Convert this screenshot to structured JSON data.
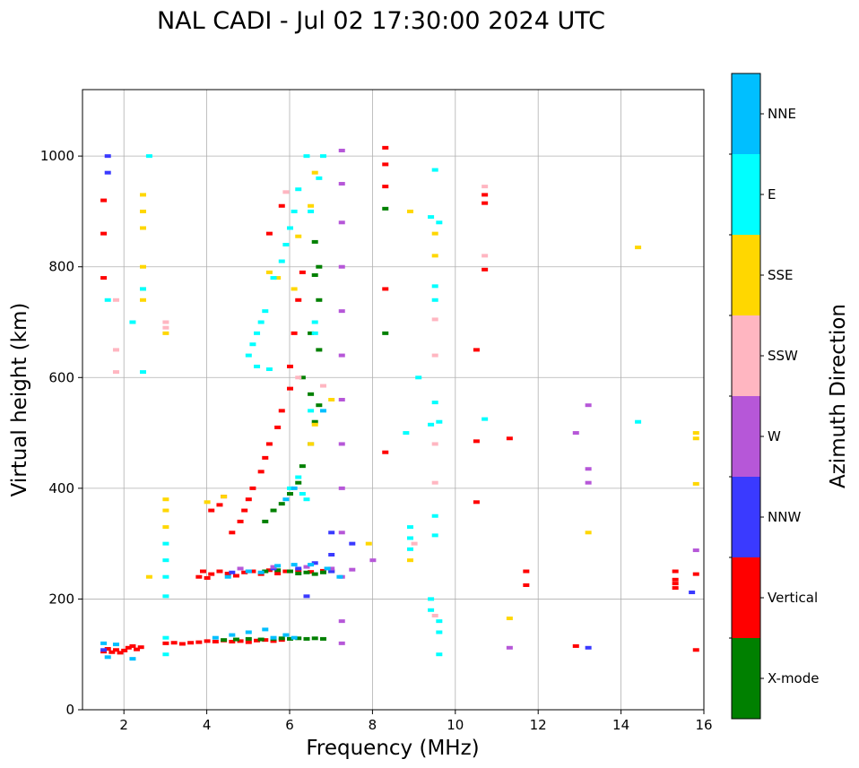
{
  "chart_data": {
    "type": "scatter",
    "title": "NAL CADI - Jul 02 17:30:00 2024 UTC",
    "xlabel": "Frequency (MHz)",
    "ylabel": "Virtual height (km)",
    "xlim": [
      1,
      16
    ],
    "ylim": [
      0,
      1120
    ],
    "xticks": [
      "2",
      "4",
      "6",
      "8",
      "10",
      "12",
      "14",
      "16"
    ],
    "yticks": [
      "0",
      "200",
      "400",
      "600",
      "800",
      "1000"
    ],
    "grid": true,
    "colorbar": {
      "label": "Azimuth Direction",
      "entries": [
        {
          "name": "X-mode",
          "color": "#008000"
        },
        {
          "name": "Vertical",
          "color": "#ff0000"
        },
        {
          "name": "NNW",
          "color": "#3a3aff"
        },
        {
          "name": "W",
          "color": "#b657d8"
        },
        {
          "name": "SSW",
          "color": "#ffb6c1"
        },
        {
          "name": "SSE",
          "color": "#ffd700"
        },
        {
          "name": "E",
          "color": "#00ffff"
        },
        {
          "name": "NNE",
          "color": "#00bfff"
        }
      ]
    },
    "series": [
      {
        "name": "Vertical",
        "points": [
          [
            1.5,
            105
          ],
          [
            1.6,
            110
          ],
          [
            1.7,
            104
          ],
          [
            1.8,
            108
          ],
          [
            1.9,
            103
          ],
          [
            2.0,
            107
          ],
          [
            2.1,
            112
          ],
          [
            2.2,
            115
          ],
          [
            2.3,
            109
          ],
          [
            2.4,
            113
          ],
          [
            3.0,
            120
          ],
          [
            3.2,
            121
          ],
          [
            3.4,
            119
          ],
          [
            3.6,
            121
          ],
          [
            3.8,
            122
          ],
          [
            4.0,
            124
          ],
          [
            4.2,
            123
          ],
          [
            4.4,
            125
          ],
          [
            4.6,
            123
          ],
          [
            4.8,
            124
          ],
          [
            5.0,
            122
          ],
          [
            5.2,
            125
          ],
          [
            5.4,
            126
          ],
          [
            5.6,
            124
          ],
          [
            5.8,
            126
          ],
          [
            3.8,
            240
          ],
          [
            3.9,
            250
          ],
          [
            4.0,
            238
          ],
          [
            4.1,
            245
          ],
          [
            4.3,
            250
          ],
          [
            4.5,
            246
          ],
          [
            4.7,
            242
          ],
          [
            4.9,
            248
          ],
          [
            5.1,
            250
          ],
          [
            5.3,
            245
          ],
          [
            5.5,
            252
          ],
          [
            5.7,
            246
          ],
          [
            5.9,
            250
          ],
          [
            6.2,
            252
          ],
          [
            6.5,
            249
          ],
          [
            6.8,
            251
          ],
          [
            4.1,
            360
          ],
          [
            4.3,
            370
          ],
          [
            4.4,
            385
          ],
          [
            4.6,
            320
          ],
          [
            4.8,
            340
          ],
          [
            4.9,
            360
          ],
          [
            5.0,
            380
          ],
          [
            5.1,
            400
          ],
          [
            5.3,
            430
          ],
          [
            5.4,
            455
          ],
          [
            5.5,
            480
          ],
          [
            5.7,
            510
          ],
          [
            5.8,
            540
          ],
          [
            6.0,
            580
          ],
          [
            6.0,
            620
          ],
          [
            6.1,
            680
          ],
          [
            6.2,
            740
          ],
          [
            6.3,
            790
          ],
          [
            5.8,
            910
          ],
          [
            5.5,
            860
          ],
          [
            1.5,
            860
          ],
          [
            1.5,
            780
          ],
          [
            1.5,
            920
          ],
          [
            8.3,
            1015
          ],
          [
            8.3,
            985
          ],
          [
            8.3,
            945
          ],
          [
            8.3,
            760
          ],
          [
            8.3,
            465
          ],
          [
            10.5,
            485
          ],
          [
            10.5,
            375
          ],
          [
            10.5,
            650
          ],
          [
            10.7,
            930
          ],
          [
            10.7,
            915
          ],
          [
            10.7,
            795
          ],
          [
            11.3,
            490
          ],
          [
            11.7,
            225
          ],
          [
            11.7,
            250
          ],
          [
            12.9,
            115
          ],
          [
            15.3,
            250
          ],
          [
            15.3,
            235
          ],
          [
            15.3,
            228
          ],
          [
            15.3,
            220
          ],
          [
            15.8,
            245
          ],
          [
            15.8,
            108
          ]
        ]
      },
      {
        "name": "X-mode",
        "points": [
          [
            4.4,
            126
          ],
          [
            4.7,
            127
          ],
          [
            5.0,
            128
          ],
          [
            5.3,
            127
          ],
          [
            5.6,
            128
          ],
          [
            5.8,
            129
          ],
          [
            6.0,
            128
          ],
          [
            6.2,
            129
          ],
          [
            6.4,
            128
          ],
          [
            6.6,
            129
          ],
          [
            6.8,
            128
          ],
          [
            5.4,
            250
          ],
          [
            5.7,
            252
          ],
          [
            6.0,
            250
          ],
          [
            6.2,
            246
          ],
          [
            6.4,
            248
          ],
          [
            6.6,
            245
          ],
          [
            6.8,
            248
          ],
          [
            7.0,
            250
          ],
          [
            5.4,
            340
          ],
          [
            5.6,
            360
          ],
          [
            5.8,
            372
          ],
          [
            6.0,
            390
          ],
          [
            6.2,
            410
          ],
          [
            6.3,
            440
          ],
          [
            6.5,
            480
          ],
          [
            6.6,
            520
          ],
          [
            6.7,
            550
          ],
          [
            6.5,
            570
          ],
          [
            6.3,
            600
          ],
          [
            6.7,
            650
          ],
          [
            6.5,
            680
          ],
          [
            6.7,
            740
          ],
          [
            6.6,
            785
          ],
          [
            6.7,
            800
          ],
          [
            6.6,
            845
          ],
          [
            8.3,
            905
          ],
          [
            8.3,
            680
          ]
        ]
      },
      {
        "name": "NNW",
        "points": [
          [
            1.6,
            1000
          ],
          [
            1.6,
            970
          ],
          [
            1.5,
            108
          ],
          [
            4.6,
            248
          ],
          [
            5.0,
            250
          ],
          [
            5.6,
            255
          ],
          [
            6.2,
            255
          ],
          [
            6.6,
            265
          ],
          [
            7.0,
            250
          ],
          [
            6.4,
            205
          ],
          [
            7.5,
            300
          ],
          [
            7.0,
            320
          ],
          [
            7.0,
            280
          ],
          [
            13.2,
            112
          ],
          [
            15.7,
            212
          ]
        ]
      },
      {
        "name": "W",
        "points": [
          [
            7.25,
            1010
          ],
          [
            7.25,
            950
          ],
          [
            7.25,
            880
          ],
          [
            7.25,
            800
          ],
          [
            7.25,
            720
          ],
          [
            7.25,
            640
          ],
          [
            7.25,
            560
          ],
          [
            7.25,
            480
          ],
          [
            7.25,
            400
          ],
          [
            7.25,
            320
          ],
          [
            7.25,
            240
          ],
          [
            7.25,
            160
          ],
          [
            7.25,
            120
          ],
          [
            4.8,
            255
          ],
          [
            5.6,
            258
          ],
          [
            6.4,
            258
          ],
          [
            7.0,
            255
          ],
          [
            7.5,
            253
          ],
          [
            8.0,
            270
          ],
          [
            12.9,
            500
          ],
          [
            13.2,
            550
          ],
          [
            13.2,
            410
          ],
          [
            13.2,
            435
          ],
          [
            11.3,
            112
          ],
          [
            15.8,
            288
          ]
        ]
      },
      {
        "name": "SSW",
        "points": [
          [
            3.0,
            700
          ],
          [
            3.0,
            690
          ],
          [
            1.8,
            650
          ],
          [
            1.8,
            610
          ],
          [
            1.8,
            740
          ],
          [
            9.0,
            300
          ],
          [
            9.5,
            170
          ],
          [
            9.5,
            480
          ],
          [
            9.5,
            410
          ],
          [
            9.5,
            640
          ],
          [
            9.5,
            705
          ],
          [
            10.7,
            820
          ],
          [
            10.7,
            945
          ],
          [
            6.2,
            600
          ],
          [
            6.8,
            585
          ],
          [
            5.9,
            935
          ]
        ]
      },
      {
        "name": "SSE",
        "points": [
          [
            2.45,
            930
          ],
          [
            2.45,
            900
          ],
          [
            2.45,
            870
          ],
          [
            2.45,
            800
          ],
          [
            2.45,
            760
          ],
          [
            2.45,
            740
          ],
          [
            3.0,
            380
          ],
          [
            3.0,
            360
          ],
          [
            3.0,
            330
          ],
          [
            3.0,
            680
          ],
          [
            2.6,
            240
          ],
          [
            4.0,
            375
          ],
          [
            4.4,
            385
          ],
          [
            5.5,
            790
          ],
          [
            5.7,
            780
          ],
          [
            6.1,
            760
          ],
          [
            6.2,
            855
          ],
          [
            6.5,
            910
          ],
          [
            6.6,
            970
          ],
          [
            6.6,
            515
          ],
          [
            6.5,
            480
          ],
          [
            7.0,
            560
          ],
          [
            7.9,
            300
          ],
          [
            8.9,
            900
          ],
          [
            8.9,
            270
          ],
          [
            9.5,
            860
          ],
          [
            9.5,
            820
          ],
          [
            11.3,
            165
          ],
          [
            13.2,
            320
          ],
          [
            14.4,
            835
          ],
          [
            15.8,
            500
          ],
          [
            15.8,
            490
          ],
          [
            15.8,
            408
          ]
        ]
      },
      {
        "name": "E",
        "points": [
          [
            3.0,
            300
          ],
          [
            3.0,
            270
          ],
          [
            3.0,
            240
          ],
          [
            3.0,
            205
          ],
          [
            3.0,
            130
          ],
          [
            3.0,
            100
          ],
          [
            2.45,
            610
          ],
          [
            2.45,
            760
          ],
          [
            1.6,
            740
          ],
          [
            2.2,
            700
          ],
          [
            2.6,
            1000
          ],
          [
            5.0,
            640
          ],
          [
            5.1,
            660
          ],
          [
            5.2,
            680
          ],
          [
            5.3,
            700
          ],
          [
            5.4,
            720
          ],
          [
            5.6,
            780
          ],
          [
            5.8,
            810
          ],
          [
            5.9,
            840
          ],
          [
            6.0,
            870
          ],
          [
            6.1,
            900
          ],
          [
            6.5,
            900
          ],
          [
            6.7,
            960
          ],
          [
            6.8,
            1000
          ],
          [
            6.4,
            1000
          ],
          [
            6.2,
            940
          ],
          [
            5.2,
            620
          ],
          [
            5.5,
            615
          ],
          [
            6.6,
            700
          ],
          [
            6.6,
            680
          ],
          [
            6.4,
            380
          ],
          [
            6.3,
            390
          ],
          [
            6.0,
            400
          ],
          [
            6.2,
            420
          ],
          [
            6.5,
            540
          ],
          [
            8.8,
            500
          ],
          [
            8.9,
            330
          ],
          [
            8.9,
            310
          ],
          [
            8.9,
            290
          ],
          [
            9.1,
            600
          ],
          [
            9.4,
            515
          ],
          [
            9.6,
            520
          ],
          [
            9.5,
            555
          ],
          [
            9.5,
            975
          ],
          [
            9.4,
            890
          ],
          [
            9.6,
            880
          ],
          [
            9.5,
            765
          ],
          [
            9.5,
            740
          ],
          [
            9.5,
            350
          ],
          [
            9.5,
            315
          ],
          [
            9.4,
            200
          ],
          [
            9.4,
            180
          ],
          [
            9.6,
            160
          ],
          [
            9.6,
            140
          ],
          [
            9.6,
            100
          ],
          [
            10.7,
            525
          ],
          [
            14.4,
            520
          ]
        ]
      },
      {
        "name": "NNE",
        "points": [
          [
            1.5,
            120
          ],
          [
            1.6,
            95
          ],
          [
            1.8,
            118
          ],
          [
            2.2,
            92
          ],
          [
            4.2,
            130
          ],
          [
            4.6,
            135
          ],
          [
            5.0,
            140
          ],
          [
            5.4,
            145
          ],
          [
            5.6,
            130
          ],
          [
            5.9,
            135
          ],
          [
            6.1,
            130
          ],
          [
            5.0,
            250
          ],
          [
            5.3,
            248
          ],
          [
            5.7,
            260
          ],
          [
            6.1,
            262
          ],
          [
            6.5,
            262
          ],
          [
            6.9,
            255
          ],
          [
            7.2,
            240
          ],
          [
            4.5,
            240
          ],
          [
            5.9,
            380
          ],
          [
            6.1,
            400
          ],
          [
            6.8,
            540
          ]
        ]
      }
    ]
  }
}
